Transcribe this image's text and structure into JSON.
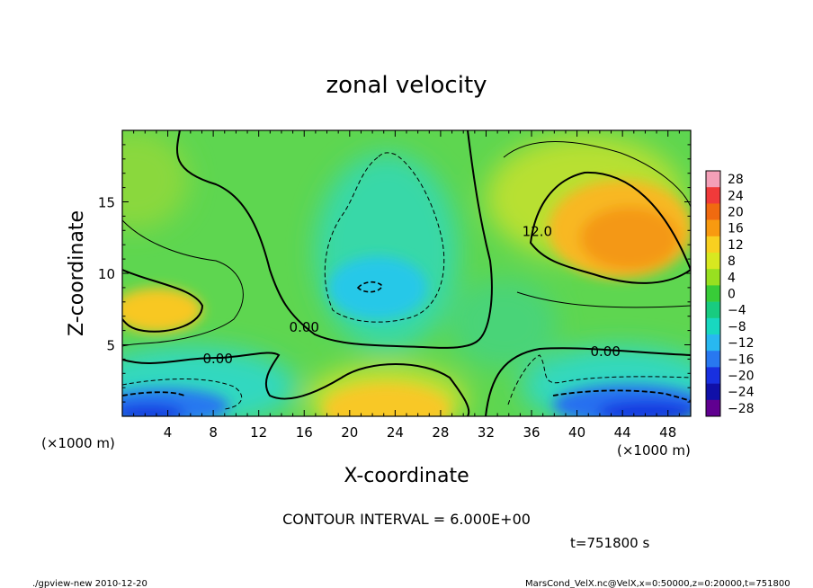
{
  "footer": {
    "program": "./gpview-new  2010-12-20",
    "source": "MarsCond_VelX.nc@VelX,x=0:50000,z=0:20000,t=751800"
  },
  "contour_interval": "CONTOUR INTERVAL = 6.000E+00",
  "time_label": "t=751800 s",
  "chart_data": {
    "type": "heatmap",
    "title": "zonal velocity",
    "xlabel": "X-coordinate",
    "ylabel": "Z-coordinate",
    "x_unit_label": "(×1000 m)",
    "y_unit_label": "(×1000 m)",
    "xlim": [
      0,
      50
    ],
    "ylim": [
      0,
      20
    ],
    "x_ticks": [
      4,
      8,
      12,
      16,
      20,
      24,
      28,
      32,
      36,
      40,
      44,
      48
    ],
    "y_ticks": [
      5,
      10,
      15
    ],
    "colorbar_levels": [
      28,
      24,
      20,
      16,
      12,
      8,
      4,
      0,
      -4,
      -8,
      -12,
      -16,
      -20,
      -24,
      -28
    ],
    "colorbar_colors": [
      "#f4a0b8",
      "#f03a3a",
      "#f06a10",
      "#f89a10",
      "#f8d020",
      "#d8e820",
      "#98e020",
      "#38cc38",
      "#18cc80",
      "#18d8c0",
      "#28b8f0",
      "#2878f0",
      "#1830e0",
      "#1010a8",
      "#600090"
    ],
    "contour_labels": [
      {
        "text": "0.00",
        "x": 8.4,
        "z": 4.1
      },
      {
        "text": "0.00",
        "x": 16.0,
        "z": 6.3
      },
      {
        "text": "0.00",
        "x": 42.5,
        "z": 4.6
      },
      {
        "text": "12.0",
        "x": 36.5,
        "z": 13.0
      }
    ],
    "features": [
      {
        "kind": "max",
        "x": 44,
        "z": 12,
        "value": 16
      },
      {
        "kind": "max",
        "x": 3,
        "z": 7.5,
        "value": 12
      },
      {
        "kind": "max",
        "x": 23,
        "z": 0.5,
        "value": 10
      },
      {
        "kind": "min",
        "x": 21,
        "z": 9,
        "value": -10
      },
      {
        "kind": "min",
        "x": 45,
        "z": 1,
        "value": -18
      },
      {
        "kind": "min",
        "x": 3,
        "z": 1,
        "value": -18
      }
    ]
  }
}
